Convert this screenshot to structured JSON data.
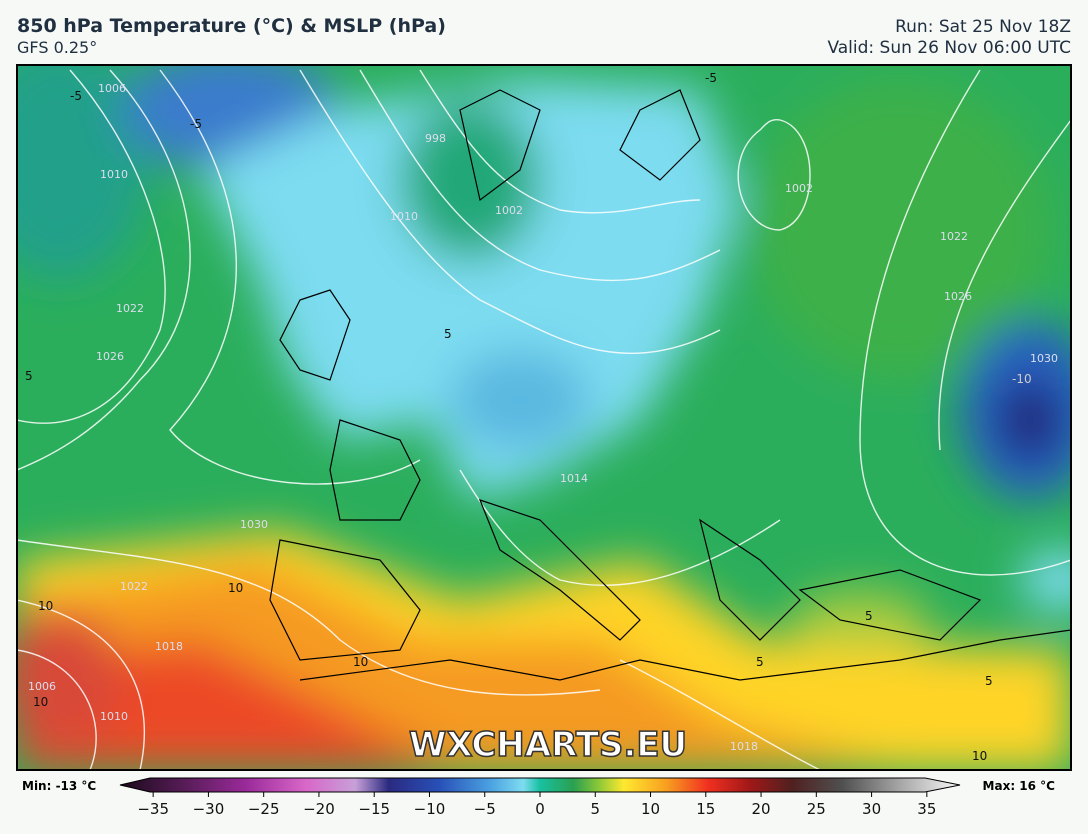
{
  "header": {
    "title": "850 hPa Temperature (°C) & MSLP (hPa)",
    "subtitle": "GFS 0.25°",
    "run": "Run: Sat 25 Nov 18Z",
    "valid": "Valid: Sun 26 Nov 06:00 UTC"
  },
  "map": {
    "watermark": "WXCHARTS.EU",
    "labels": [
      "-5",
      "-5",
      "5",
      "-5",
      "10",
      "10",
      "10",
      "5",
      "5",
      "5",
      "-10",
      "5",
      "10",
      "10"
    ],
    "isobar_labels": [
      "1006",
      "1010",
      "1022",
      "1026",
      "1002",
      "998",
      "1002",
      "1010",
      "1014",
      "1022",
      "1026",
      "1030",
      "1018",
      "1010",
      "1006",
      "1030",
      "1022",
      "1018"
    ]
  },
  "colorbar": {
    "min": "Min: -13 °C",
    "max": "Max: 16 °C",
    "ticks": [
      {
        "value": -35,
        "label": "−35"
      },
      {
        "value": -30,
        "label": "−30"
      },
      {
        "value": -25,
        "label": "−25"
      },
      {
        "value": -20,
        "label": "−20"
      },
      {
        "value": -15,
        "label": "−15"
      },
      {
        "value": -10,
        "label": "−10"
      },
      {
        "value": -5,
        "label": "−5"
      },
      0,
      5,
      10,
      15,
      20,
      25,
      30,
      35
    ],
    "lim": [
      -38,
      38
    ]
  }
}
